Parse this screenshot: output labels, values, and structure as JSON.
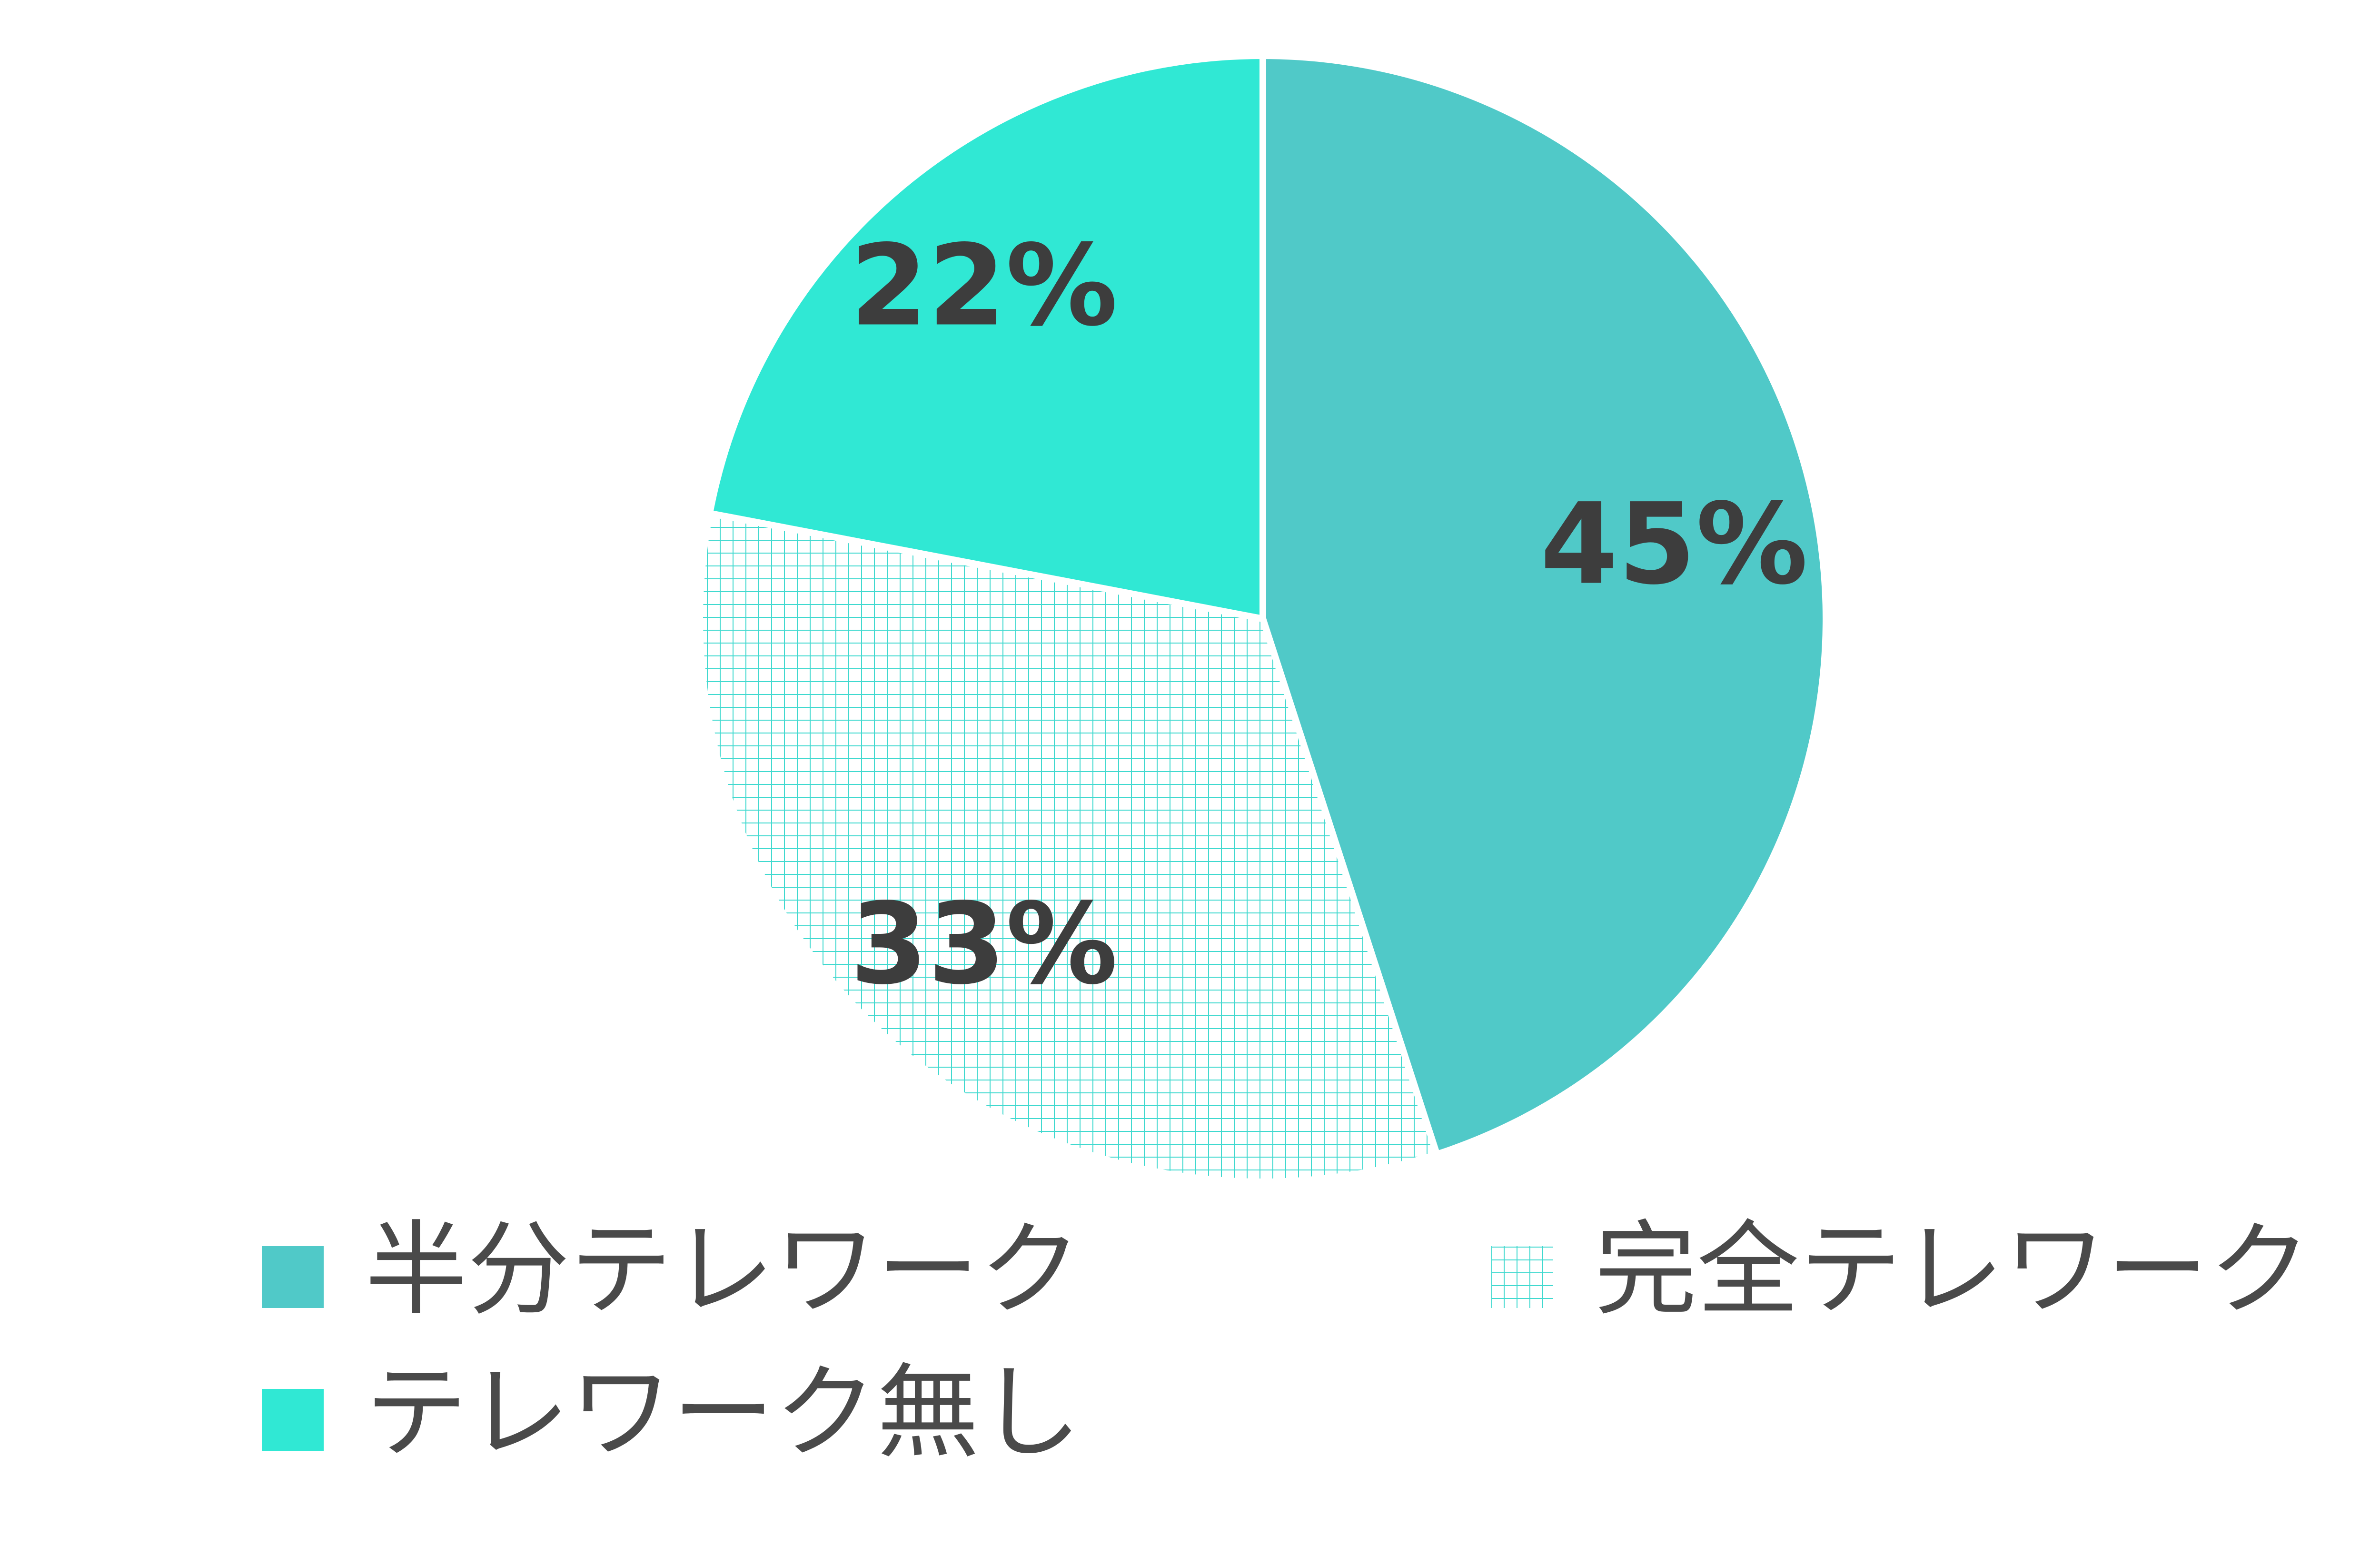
{
  "chart_data": {
    "type": "pie",
    "categories": [
      "半分テレワーク",
      "完全テレワーク",
      "テレワーク無し"
    ],
    "values": [
      45,
      33,
      22
    ],
    "value_labels": [
      "45%",
      "33%",
      "22%"
    ],
    "colors": [
      "#50C9C8",
      "#40D9CF",
      "#30E8D4"
    ],
    "patterns": [
      "solid",
      "grid",
      "solid"
    ],
    "start": "top",
    "direction": "clockwise"
  }
}
